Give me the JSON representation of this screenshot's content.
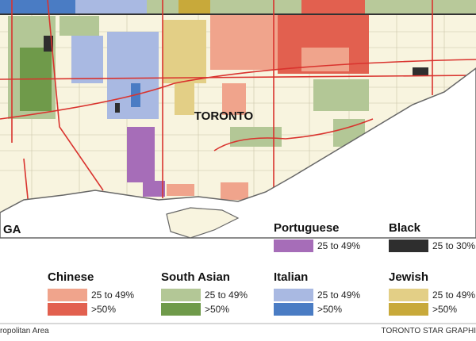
{
  "map": {
    "city_label": "TORONTO",
    "edge_label": "GA"
  },
  "legend": [
    {
      "group": "Portuguese",
      "items": [
        {
          "label": "25 to 49%",
          "color": "#a66db8"
        }
      ]
    },
    {
      "group": "Black",
      "items": [
        {
          "label": "25 to  30%",
          "color": "#2e2e2e"
        }
      ]
    },
    {
      "group": "Chinese",
      "items": [
        {
          "label": "25 to 49%",
          "color": "#f0a48c"
        },
        {
          "label": ">50%",
          "color": "#e2604f"
        }
      ]
    },
    {
      "group": "South Asian",
      "items": [
        {
          "label": "25 to 49%",
          "color": "#b3c796"
        },
        {
          "label": ">50%",
          "color": "#6f9a4a"
        }
      ]
    },
    {
      "group": "Italian",
      "items": [
        {
          "label": "25 to 49%",
          "color": "#a9b9e2"
        },
        {
          "label": ">50%",
          "color": "#4a7cc4"
        }
      ]
    },
    {
      "group": "Jewish",
      "items": [
        {
          "label": "25 to 49%",
          "color": "#e3cf86"
        },
        {
          "label": ">50%",
          "color": "#c8a93a"
        }
      ]
    }
  ],
  "footer": {
    "left": "ropolitan Area",
    "right": "TORONTO STAR GRAPHI"
  }
}
